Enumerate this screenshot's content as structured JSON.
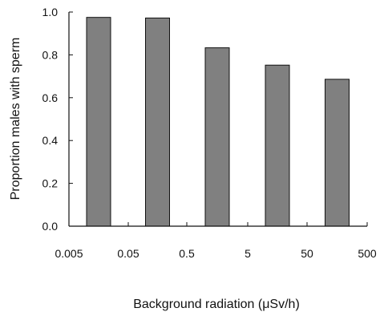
{
  "chart_data": {
    "type": "bar",
    "title": "",
    "xlabel": "Background radiation (μSv/h)",
    "ylabel": "Proportion males with sperm",
    "x_tick_labels": [
      "0.005",
      "0.05",
      "0.5",
      "5",
      "50",
      "500"
    ],
    "y_tick_labels": [
      "0.0",
      "0.2",
      "0.4",
      "0.6",
      "0.8",
      "1.0"
    ],
    "ylim": [
      0,
      1
    ],
    "grid": false,
    "legend": "none",
    "bar_color": "#808080",
    "values": [
      0.975,
      0.972,
      0.833,
      0.752,
      0.686
    ]
  }
}
